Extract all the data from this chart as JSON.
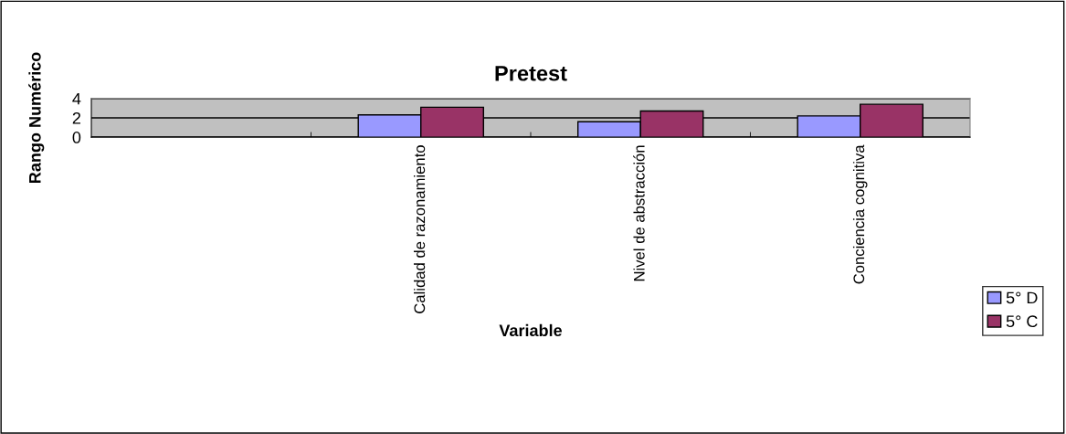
{
  "chart_data": {
    "type": "bar",
    "title": "Pretest",
    "xlabel": "Variable",
    "ylabel": "Rango Numérico",
    "categories": [
      null,
      "Calidad de razonamiento",
      "Nivel de abstracción",
      "Conciencia cognitiva"
    ],
    "series": [
      {
        "name": "5° D",
        "color": "#9999ff",
        "values": [
          null,
          2.3,
          1.6,
          2.2
        ]
      },
      {
        "name": "5° C",
        "color": "#993366",
        "values": [
          null,
          3.1,
          2.7,
          3.4
        ]
      }
    ],
    "ylim": [
      0,
      4
    ],
    "yticks": [
      0,
      2,
      4
    ],
    "grid": "y",
    "legend": "right"
  }
}
